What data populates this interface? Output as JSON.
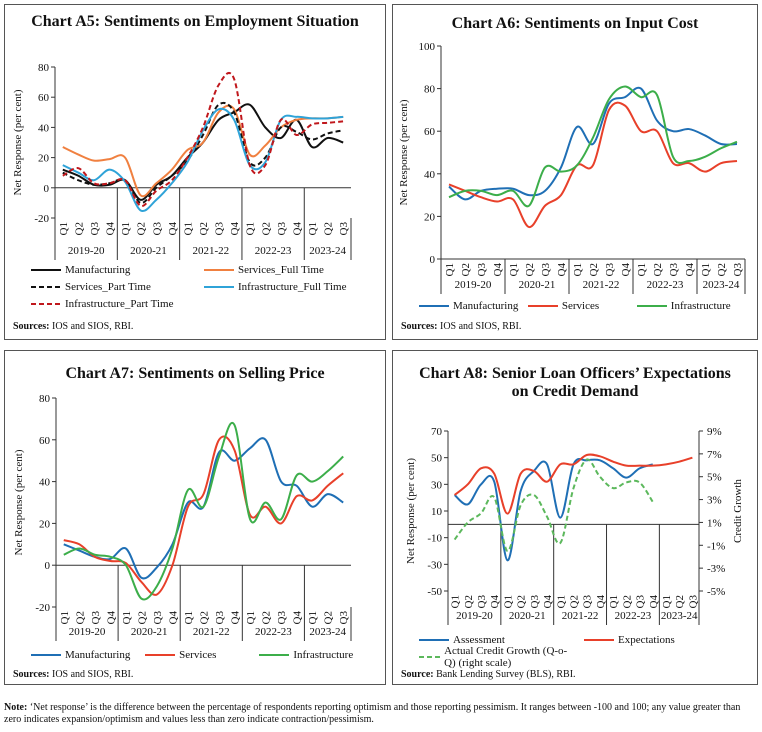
{
  "chart_data": [
    {
      "type": "line",
      "title": "Chart A5: Sentiments on Employment Situation",
      "ylabel": "Net Response (per cent)",
      "categories": [
        "Q1",
        "Q2",
        "Q3",
        "Q4",
        "Q1",
        "Q2",
        "Q3",
        "Q4",
        "Q1",
        "Q2",
        "Q3",
        "Q4",
        "Q1",
        "Q2",
        "Q3",
        "Q4",
        "Q1",
        "Q2",
        "Q3"
      ],
      "groups": [
        "2019-20",
        "2020-21",
        "2021-22",
        "2022-23",
        "2023-24"
      ],
      "ylim": [
        -20,
        80
      ],
      "yticks": [
        -20,
        0,
        20,
        40,
        60,
        80
      ],
      "series": [
        {
          "name": "Manufacturing",
          "color": "#111111",
          "values": [
            12,
            8,
            2,
            2,
            5,
            -8,
            2,
            8,
            20,
            30,
            45,
            50,
            55,
            40,
            33,
            45,
            27,
            33,
            30
          ]
        },
        {
          "name": "Services_Full Time",
          "color": "#f08040",
          "values": [
            27,
            22,
            18,
            19,
            20,
            -5,
            3,
            12,
            25,
            30,
            50,
            52,
            22,
            28,
            40,
            45,
            46,
            46,
            47
          ]
        },
        {
          "name": "Services_Part Time",
          "color": "#111111",
          "dash": true,
          "values": [
            10,
            5,
            2,
            3,
            5,
            -10,
            0,
            8,
            18,
            35,
            55,
            50,
            17,
            20,
            40,
            37,
            32,
            36,
            38
          ]
        },
        {
          "name": "Infrastructure_Full Time",
          "color": "#2fa3d8",
          "values": [
            15,
            10,
            5,
            12,
            4,
            -15,
            -8,
            3,
            17,
            38,
            52,
            45,
            15,
            17,
            45,
            47,
            46,
            46,
            47
          ]
        },
        {
          "name": "Infrastructure_Part Time",
          "color": "#c0171c",
          "dash": true,
          "values": [
            8,
            13,
            3,
            3,
            5,
            -12,
            -2,
            5,
            20,
            40,
            68,
            72,
            15,
            15,
            45,
            35,
            42,
            43,
            44
          ]
        }
      ],
      "source_label": "Sources:",
      "source": "IOS and SIOS, RBI."
    },
    {
      "type": "line",
      "title": "Chart A6: Sentiments on Input Cost",
      "ylabel": "Net Response (per cent)",
      "categories": [
        "Q1",
        "Q2",
        "Q3",
        "Q4",
        "Q1",
        "Q2",
        "Q3",
        "Q4",
        "Q1",
        "Q2",
        "Q3",
        "Q4",
        "Q1",
        "Q2",
        "Q3",
        "Q4",
        "Q1",
        "Q2",
        "Q3"
      ],
      "groups": [
        "2019-20",
        "2020-21",
        "2021-22",
        "2022-23",
        "2023-24"
      ],
      "ylim": [
        0,
        100
      ],
      "yticks": [
        0,
        20,
        40,
        60,
        80,
        100
      ],
      "series": [
        {
          "name": "Manufacturing",
          "color": "#1f6fb5",
          "values": [
            34,
            28,
            32,
            33,
            33,
            30,
            32,
            43,
            62,
            54,
            73,
            76,
            80,
            65,
            60,
            61,
            58,
            54,
            54
          ]
        },
        {
          "name": "Services",
          "color": "#e8402a",
          "values": [
            35,
            32,
            29,
            27,
            28,
            15,
            25,
            30,
            44,
            44,
            70,
            72,
            60,
            60,
            45,
            45,
            41,
            45,
            46
          ]
        },
        {
          "name": "Infrastructure",
          "color": "#3cae4a",
          "values": [
            29,
            32,
            32,
            30,
            32,
            25,
            43,
            41,
            44,
            57,
            75,
            81,
            76,
            77,
            48,
            46,
            48,
            52,
            55
          ]
        }
      ],
      "source_label": "Sources:",
      "source": "IOS and SIOS, RBI."
    },
    {
      "type": "line",
      "title": "Chart A7: Sentiments on Selling Price",
      "ylabel": "Net Response (per cent)",
      "categories": [
        "Q1",
        "Q2",
        "Q3",
        "Q4",
        "Q1",
        "Q2",
        "Q3",
        "Q4",
        "Q1",
        "Q2",
        "Q3",
        "Q4",
        "Q1",
        "Q2",
        "Q3",
        "Q4",
        "Q1",
        "Q2",
        "Q3"
      ],
      "groups": [
        "2019-20",
        "2020-21",
        "2021-22",
        "2022-23",
        "2023-24"
      ],
      "ylim": [
        -20,
        80
      ],
      "yticks": [
        -20,
        0,
        20,
        40,
        60,
        80
      ],
      "series": [
        {
          "name": "Manufacturing",
          "color": "#1f6fb5",
          "values": [
            10,
            7,
            4,
            3,
            8,
            -6,
            -1,
            10,
            30,
            28,
            54,
            50,
            56,
            60,
            40,
            38,
            28,
            34,
            30
          ]
        },
        {
          "name": "Services",
          "color": "#e8402a",
          "values": [
            12,
            10,
            4,
            2,
            1,
            -8,
            -14,
            0,
            28,
            34,
            60,
            55,
            24,
            28,
            20,
            33,
            31,
            38,
            44
          ]
        },
        {
          "name": "Infrastructure",
          "color": "#3cae4a",
          "values": [
            5,
            8,
            5,
            4,
            0,
            -16,
            -10,
            8,
            36,
            28,
            52,
            67,
            22,
            30,
            22,
            43,
            40,
            45,
            52
          ]
        }
      ],
      "source_label": "Sources:",
      "source": "IOS and SIOS, RBI."
    },
    {
      "type": "line",
      "title": "Chart A8: Senior Loan Officers’ Expectations on Credit Demand",
      "ylabel": "Net Response (per cent)",
      "y2label": "Credit Growth",
      "categories": [
        "Q1",
        "Q2",
        "Q3",
        "Q4",
        "Q1",
        "Q2",
        "Q3",
        "Q4",
        "Q1",
        "Q2",
        "Q3",
        "Q4",
        "Q1",
        "Q2",
        "Q3",
        "Q4",
        "Q1",
        "Q2",
        "Q3"
      ],
      "groups": [
        "2019-20",
        "2020-21",
        "2021-22",
        "2022-23",
        "2023-24"
      ],
      "ylim": [
        -50,
        70
      ],
      "yticks": [
        -50,
        -30,
        -10,
        10,
        30,
        50,
        70
      ],
      "y2lim": [
        -5,
        9
      ],
      "y2ticks": [
        {
          "value": -5,
          "label": "-5%"
        },
        {
          "value": -3,
          "label": "-3%"
        },
        {
          "value": -1,
          "label": "-1%"
        },
        {
          "value": 1,
          "label": "1%"
        },
        {
          "value": 3,
          "label": "3%"
        },
        {
          "value": 5,
          "label": "5%"
        },
        {
          "value": 7,
          "label": "7%"
        },
        {
          "value": 9,
          "label": "9%"
        }
      ],
      "series": [
        {
          "name": "Assessment",
          "color": "#1f6fb5",
          "values": [
            22,
            15,
            30,
            32,
            -27,
            25,
            40,
            45,
            5,
            45,
            48,
            48,
            42,
            35,
            42,
            45,
            null,
            null,
            null
          ]
        },
        {
          "name": "Expectations",
          "color": "#e8402a",
          "values": [
            22,
            30,
            42,
            38,
            8,
            38,
            40,
            32,
            45,
            45,
            52,
            51,
            47,
            44,
            44,
            44,
            45,
            47,
            50
          ]
        },
        {
          "name": "Actual Credit Growth (Q-o-Q) (right scale)",
          "color": "#5cb85c",
          "dash": true,
          "axis": "y2",
          "values": [
            -0.5,
            1,
            1.8,
            3.2,
            -1.5,
            2.5,
            3.4,
            1.5,
            -0.8,
            4,
            6.5,
            5,
            4,
            4.5,
            4.5,
            2.8,
            null,
            null,
            null
          ]
        }
      ],
      "source_label": "Source:",
      "source": "Bank Lending Survey (BLS), RBI."
    }
  ],
  "note_label": "Note:",
  "note": "‘Net response’ is the difference between the percentage of respondents reporting optimism and those reporting pessimism. It ranges between -100 and 100; any value greater than zero indicates expansion/optimism and values less than zero indicate contraction/pessimism."
}
